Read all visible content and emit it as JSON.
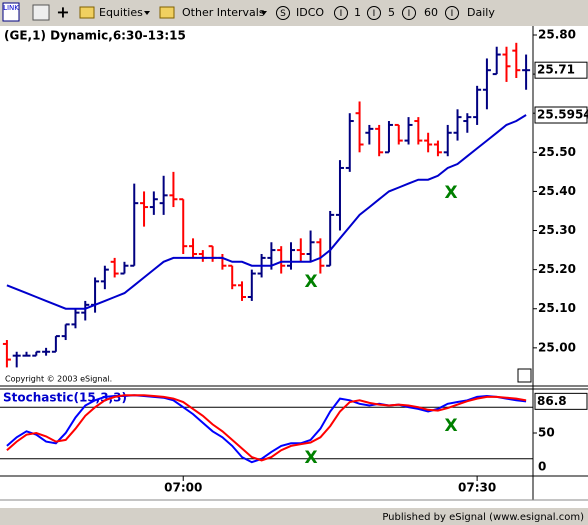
{
  "toolbar": {
    "link": "LINK",
    "menus": [
      "Equities",
      "Other Intervals"
    ],
    "buttons": [
      {
        "icon": "S",
        "label": "IDCO"
      },
      {
        "icon": "I",
        "label": "1"
      },
      {
        "icon": "I",
        "label": "5"
      },
      {
        "icon": "I",
        "label": "60"
      },
      {
        "icon": "I",
        "label": "Daily"
      }
    ]
  },
  "status_bar": "Published by eSignal (www.esignal.com)",
  "chart_data": [
    {
      "type": "ohlc",
      "title": "(GE,1) Dynamic,6:30-13:15",
      "footnote": "Copyright © 2003 eSignal.",
      "categories": [
        null,
        null,
        null,
        null,
        null,
        null,
        null,
        null,
        null,
        null,
        null,
        null,
        null,
        null,
        null,
        null,
        null,
        null,
        "07:00",
        null,
        null,
        null,
        null,
        null,
        null,
        null,
        null,
        null,
        null,
        null,
        null,
        null,
        null,
        null,
        null,
        null,
        null,
        null,
        null,
        null,
        null,
        null,
        null,
        null,
        null,
        null,
        null,
        null,
        "07:30",
        null,
        null,
        null,
        null,
        null
      ],
      "open": [
        25.01,
        24.98,
        24.98,
        24.98,
        24.99,
        24.99,
        25.03,
        25.06,
        25.09,
        25.11,
        25.17,
        25.22,
        25.19,
        25.21,
        25.37,
        25.36,
        25.37,
        25.39,
        25.38,
        25.26,
        25.24,
        25.26,
        25.23,
        25.21,
        25.16,
        25.13,
        25.19,
        25.23,
        25.25,
        25.21,
        25.25,
        25.24,
        25.27,
        25.21,
        25.34,
        25.46,
        25.6,
        25.55,
        25.56,
        25.5,
        25.57,
        25.53,
        25.58,
        25.53,
        25.52,
        25.5,
        25.55,
        25.58,
        25.59,
        25.66,
        25.7,
        25.75,
        25.76,
        25.71
      ],
      "high": [
        25.02,
        24.99,
        24.99,
        24.99,
        25.0,
        25.03,
        25.06,
        25.1,
        25.12,
        25.18,
        25.21,
        25.23,
        25.22,
        25.42,
        25.4,
        25.4,
        25.44,
        25.45,
        25.38,
        25.28,
        25.25,
        25.26,
        25.24,
        25.21,
        25.17,
        25.2,
        25.24,
        25.27,
        25.26,
        25.27,
        25.28,
        25.3,
        25.28,
        25.35,
        25.48,
        25.6,
        25.63,
        25.57,
        25.57,
        25.58,
        25.57,
        25.59,
        25.59,
        25.55,
        25.53,
        25.57,
        25.61,
        25.6,
        25.67,
        25.74,
        25.77,
        25.77,
        25.78,
        25.75
      ],
      "low": [
        24.95,
        24.95,
        24.98,
        24.98,
        24.98,
        24.99,
        25.02,
        25.05,
        25.07,
        25.09,
        25.15,
        25.18,
        25.19,
        25.21,
        25.31,
        25.34,
        25.34,
        25.36,
        25.24,
        25.23,
        25.22,
        25.22,
        25.2,
        25.15,
        25.12,
        25.12,
        25.18,
        25.2,
        25.19,
        25.2,
        25.22,
        25.22,
        25.19,
        25.21,
        25.3,
        25.45,
        25.5,
        25.52,
        25.49,
        25.5,
        25.52,
        25.52,
        25.52,
        25.5,
        25.49,
        25.49,
        25.53,
        25.55,
        25.57,
        25.61,
        25.7,
        25.68,
        25.69,
        25.66
      ],
      "close": [
        24.97,
        24.98,
        24.98,
        24.99,
        24.99,
        25.03,
        25.06,
        25.09,
        25.11,
        25.17,
        25.2,
        25.19,
        25.21,
        25.37,
        25.36,
        25.38,
        25.39,
        25.38,
        25.26,
        25.24,
        25.23,
        25.23,
        25.21,
        25.16,
        25.13,
        25.19,
        25.23,
        25.25,
        25.21,
        25.25,
        25.24,
        25.27,
        25.21,
        25.34,
        25.46,
        25.58,
        25.52,
        25.56,
        25.5,
        25.57,
        25.53,
        25.57,
        25.53,
        25.52,
        25.5,
        25.55,
        25.59,
        25.59,
        25.66,
        25.71,
        25.75,
        25.72,
        25.71,
        25.71
      ],
      "up_color": "#000080",
      "down_color": "#ff0000",
      "overlay": {
        "color": "#0000cc",
        "values": [
          25.16,
          25.15,
          25.14,
          25.13,
          25.12,
          25.11,
          25.1,
          25.1,
          25.1,
          25.11,
          25.12,
          25.13,
          25.14,
          25.16,
          25.18,
          25.2,
          25.22,
          25.23,
          25.23,
          25.23,
          25.23,
          25.23,
          25.23,
          25.22,
          25.22,
          25.21,
          25.21,
          25.21,
          25.22,
          25.22,
          25.22,
          25.22,
          25.23,
          25.25,
          25.28,
          25.31,
          25.34,
          25.36,
          25.38,
          25.4,
          25.41,
          25.42,
          25.43,
          25.43,
          25.44,
          25.46,
          25.47,
          25.49,
          25.51,
          25.53,
          25.55,
          25.57,
          25.58,
          25.5954
        ]
      },
      "annotations": [
        "X",
        "X"
      ],
      "annotation_color": "#008000",
      "ylim": [
        24.905,
        25.823
      ],
      "yticks": [
        {
          "value": 25.0,
          "label": "25.00"
        },
        {
          "value": 25.1,
          "label": "25.10"
        },
        {
          "value": 25.2,
          "label": "25.20"
        },
        {
          "value": 25.3,
          "label": "25.30"
        },
        {
          "value": 25.4,
          "label": "25.40"
        },
        {
          "value": 25.5,
          "label": "25.50"
        },
        {
          "value": 25.6,
          "label": "25.60"
        },
        {
          "value": 25.7,
          "label": "25.70"
        },
        {
          "value": 25.8,
          "label": "25.80"
        }
      ]
    },
    {
      "type": "line",
      "title": "Stochastic(15,3,3)",
      "series": [
        {
          "color": "#0000ff",
          "values": [
            35,
            45,
            52,
            48,
            40,
            38,
            50,
            68,
            82,
            88,
            92,
            93,
            93,
            94,
            93,
            92,
            91,
            88,
            80,
            72,
            62,
            52,
            45,
            35,
            22,
            16,
            20,
            28,
            35,
            38,
            38,
            42,
            55,
            75,
            90,
            88,
            84,
            82,
            84,
            82,
            83,
            80,
            78,
            75,
            78,
            84,
            86,
            88,
            92,
            93,
            92,
            90,
            88,
            86.8
          ]
        },
        {
          "color": "#ff0000",
          "values": [
            30,
            40,
            48,
            50,
            46,
            40,
            42,
            55,
            70,
            80,
            88,
            92,
            94,
            94,
            94,
            93,
            92,
            90,
            86,
            78,
            70,
            60,
            52,
            42,
            32,
            22,
            18,
            22,
            30,
            35,
            37,
            39,
            45,
            58,
            75,
            86,
            88,
            85,
            83,
            82,
            83,
            82,
            80,
            77,
            76,
            79,
            83,
            87,
            90,
            92,
            92,
            91,
            90,
            88
          ]
        }
      ],
      "levels": [
        20,
        80
      ],
      "annotations": [
        "X",
        "X"
      ],
      "annotation_color": "#008000",
      "ylim": [
        0,
        100
      ],
      "yticks": [
        0,
        50
      ]
    }
  ]
}
